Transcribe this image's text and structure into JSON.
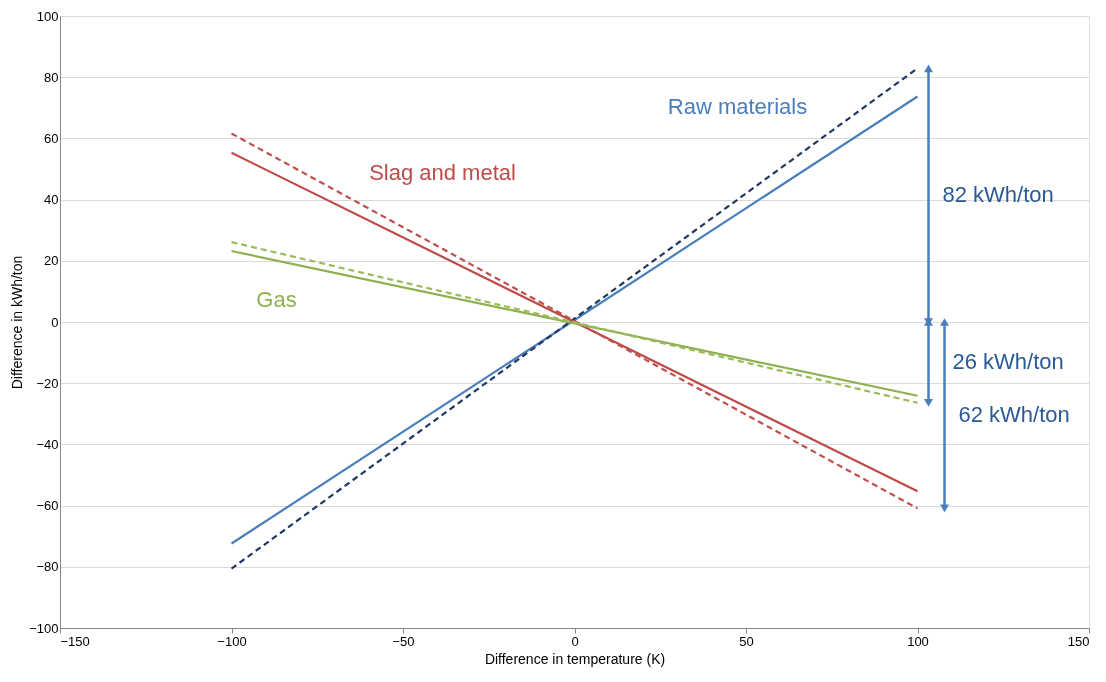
{
  "chart_data": {
    "type": "line",
    "xlabel": "Difference in temperature (K)",
    "ylabel": "Difference in kWh/ton",
    "x": [
      -100,
      100
    ],
    "series": [
      {
        "name": "Raw materials",
        "color": "#4a7ebb",
        "line_style": "solid",
        "values": [
          -72.4,
          73.7
        ]
      },
      {
        "color": "#1f3864",
        "line_style": "dashed",
        "values": [
          -80.6,
          82.9
        ]
      },
      {
        "name": "Slag and metal",
        "color": "#be4b48",
        "line_style": "solid",
        "values": [
          55.3,
          -55.3
        ]
      },
      {
        "color": "#c0504d",
        "line_style": "dashed",
        "values": [
          61.6,
          -60.9
        ]
      },
      {
        "name": "Gas",
        "color": "#8db050",
        "line_style": "solid",
        "values": [
          23.2,
          -24.1
        ]
      },
      {
        "color": "#9bbb59",
        "line_style": "dashed",
        "values": [
          26.1,
          -26.4
        ]
      }
    ],
    "annotations": [
      "82 kWh/ton",
      "26 kWh/ton",
      "62 kWh/ton"
    ],
    "xlim": [
      -150,
      150
    ],
    "xticks": [
      -150,
      -100,
      -50,
      0,
      50,
      100,
      150
    ],
    "ylim": [
      -100,
      100
    ],
    "yticks": [
      -100,
      -80,
      -60,
      -40,
      -20,
      0,
      20,
      40,
      60,
      80,
      100
    ],
    "grid": "y",
    "marker": "none"
  }
}
